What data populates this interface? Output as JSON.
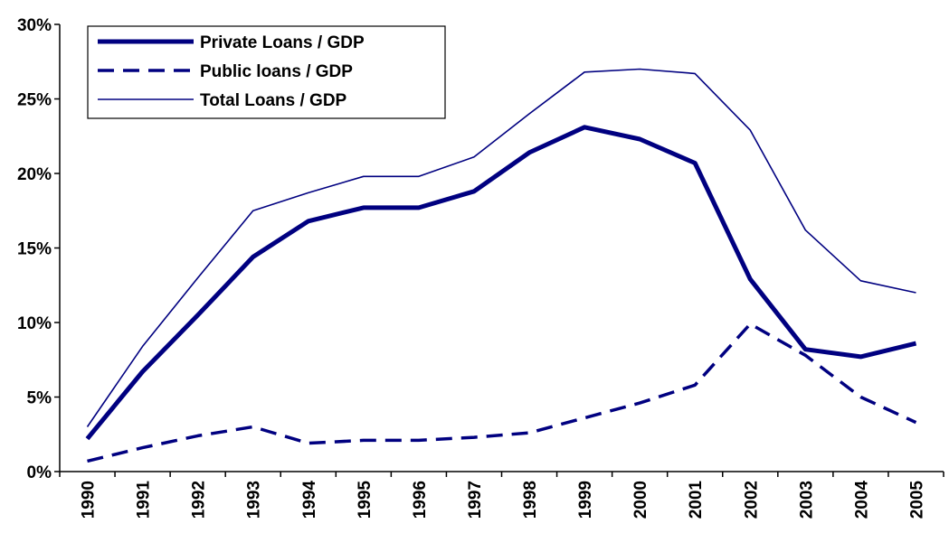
{
  "chart_data": {
    "type": "line",
    "title": "",
    "xlabel": "",
    "ylabel": "",
    "categories": [
      "1990",
      "1991",
      "1992",
      "1993",
      "1994",
      "1995",
      "1996",
      "1997",
      "1998",
      "1999",
      "2000",
      "2001",
      "2002",
      "2003",
      "2004",
      "2005"
    ],
    "ylim": [
      0,
      0.3
    ],
    "yticks": [
      0,
      0.05,
      0.1,
      0.15,
      0.2,
      0.25,
      0.3
    ],
    "ytick_labels": [
      "0%",
      "5%",
      "10%",
      "15%",
      "20%",
      "25%",
      "30%"
    ],
    "grid": false,
    "legend_position": "top-left",
    "series": [
      {
        "name": "Private Loans / GDP",
        "style": "thick-solid",
        "color": "#000080",
        "values": [
          0.022,
          0.067,
          0.105,
          0.144,
          0.168,
          0.177,
          0.177,
          0.188,
          0.214,
          0.231,
          0.223,
          0.207,
          0.129,
          0.082,
          0.077,
          0.086
        ]
      },
      {
        "name": "Public loans / GDP",
        "style": "dashed",
        "color": "#000080",
        "values": [
          0.007,
          0.016,
          0.024,
          0.03,
          0.019,
          0.021,
          0.021,
          0.023,
          0.026,
          0.036,
          0.046,
          0.058,
          0.099,
          0.078,
          0.05,
          0.033
        ]
      },
      {
        "name": "Total Loans / GDP",
        "style": "thin-solid",
        "color": "#000080",
        "values": [
          0.03,
          0.084,
          0.13,
          0.175,
          0.187,
          0.198,
          0.198,
          0.211,
          0.24,
          0.268,
          0.27,
          0.267,
          0.229,
          0.162,
          0.128,
          0.12
        ]
      }
    ]
  }
}
